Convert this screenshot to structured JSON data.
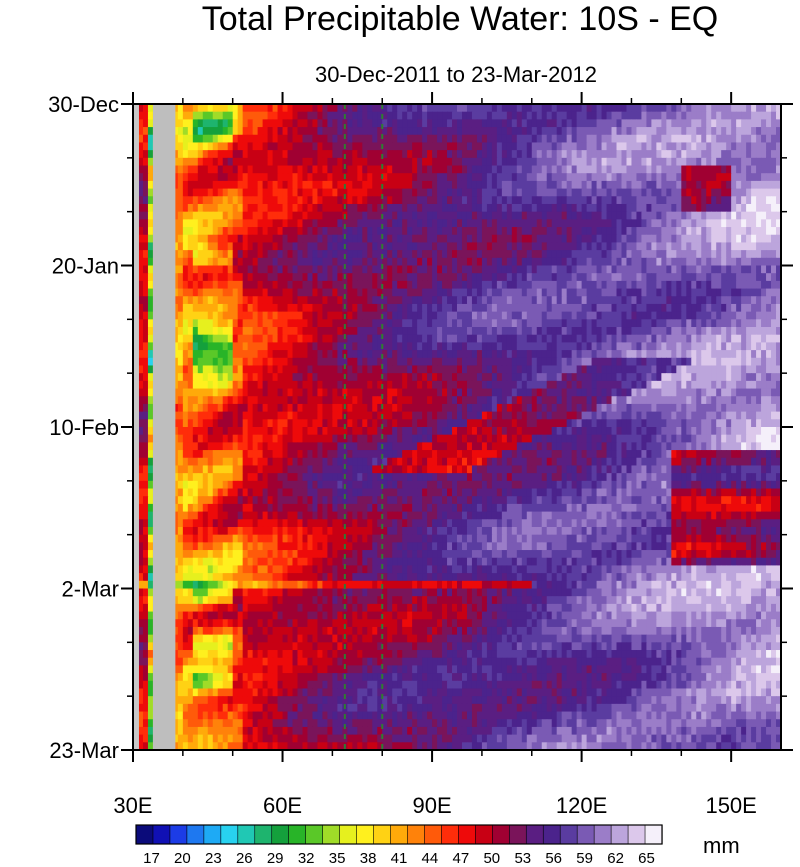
{
  "chart_data": {
    "type": "heatmap",
    "title": "Total Precipitable Water: 10S - EQ",
    "subtitle": "30-Dec-2011 to 23-Mar-2012",
    "xlabel": "",
    "ylabel": "",
    "x_range_deg_east": [
      30,
      160
    ],
    "x_ticks": [
      {
        "value": 30,
        "label": "30E"
      },
      {
        "value": 60,
        "label": "60E"
      },
      {
        "value": 90,
        "label": "90E"
      },
      {
        "value": 120,
        "label": "120E"
      },
      {
        "value": 150,
        "label": "150E"
      }
    ],
    "y_range_days_since_start": [
      0,
      84
    ],
    "y_ticks": [
      {
        "value": 0,
        "label": "30-Dec"
      },
      {
        "value": 21,
        "label": "20-Jan"
      },
      {
        "value": 42,
        "label": "10-Feb"
      },
      {
        "value": 63,
        "label": "2-Mar"
      },
      {
        "value": 84,
        "label": "23-Mar"
      }
    ],
    "reference_lines_deg_east": [
      72.5,
      80
    ],
    "missing_data_band_deg_east": [
      34,
      38.5
    ],
    "colorbar": {
      "units": "mm",
      "labels": [
        "17",
        "20",
        "23",
        "26",
        "29",
        "32",
        "35",
        "38",
        "41",
        "44",
        "47",
        "50",
        "53",
        "56",
        "59",
        "62",
        "65"
      ],
      "min": 15.5,
      "max": 66.5,
      "colors": [
        "#0b0b7a",
        "#1010b4",
        "#1c3ce6",
        "#1e78f0",
        "#1eaaf5",
        "#28d2f0",
        "#20c8b4",
        "#1eb46e",
        "#14a03c",
        "#28b428",
        "#5ac828",
        "#a0dc28",
        "#e6f01e",
        "#fff01e",
        "#ffd214",
        "#ffaa0a",
        "#ff820a",
        "#ff5a0a",
        "#ff2d0a",
        "#ee0a0a",
        "#c80014",
        "#a00032",
        "#7a145a",
        "#5a1e82",
        "#4b238c",
        "#5a3ca0",
        "#7a5ab4",
        "#9b7dc8",
        "#bca5dc",
        "#dcc8eb",
        "#f5f0fa"
      ]
    },
    "field_description": "Estimated precipitable water (mm) vs longitude (rows = days). Low values (~30-40) near 40-50E, warming to 44-50 (yellow-orange) 40-70E, 50-56 (red) 60-100E, 56-64 (purple) east of 100E with episodic red/yellow streaks."
  }
}
